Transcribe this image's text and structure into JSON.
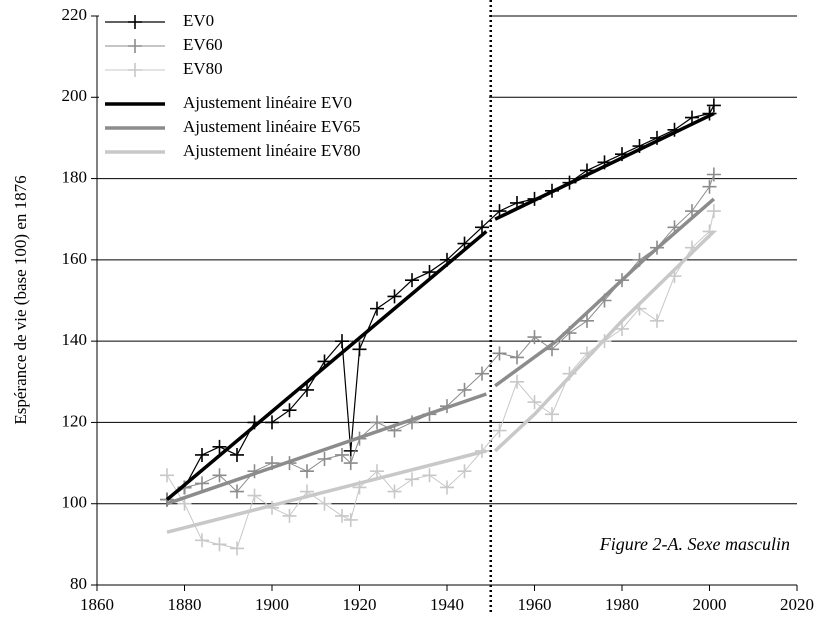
{
  "chart_data": {
    "type": "line",
    "y_label": "Espérance de vie (base 100) en 1876",
    "annotation": "Figure 2-A. Sexe masculin",
    "x": [
      1876,
      1880,
      1884,
      1888,
      1892,
      1896,
      1900,
      1904,
      1908,
      1912,
      1916,
      1918,
      1920,
      1924,
      1928,
      1932,
      1936,
      1940,
      1944,
      1948,
      1952,
      1956,
      1960,
      1964,
      1968,
      1972,
      1976,
      1980,
      1984,
      1988,
      1992,
      1996,
      2000,
      2001
    ],
    "series": [
      {
        "name": "EV0",
        "color": "#000000",
        "line_width": 1.2,
        "markers": true,
        "values": [
          101,
          104,
          112,
          114,
          112,
          120,
          120,
          123,
          128,
          135,
          140,
          113,
          138,
          148,
          151,
          155,
          157,
          160,
          164,
          168,
          172,
          174,
          175,
          177,
          179,
          182,
          184,
          186,
          188,
          190,
          192,
          195,
          196,
          198
        ]
      },
      {
        "name": "EV60",
        "color": "#8c8c8c",
        "line_width": 1,
        "markers": true,
        "values": [
          101,
          104,
          105,
          107,
          103,
          108,
          110,
          110,
          108,
          111,
          112,
          110,
          116,
          120,
          118,
          120,
          122,
          124,
          128,
          132,
          137,
          136,
          141,
          138,
          142,
          145,
          150,
          155,
          160,
          163,
          168,
          172,
          178,
          181
        ]
      },
      {
        "name": "EV80",
        "color": "#c8c8c8",
        "line_width": 1,
        "markers": true,
        "values": [
          107,
          100,
          91,
          90,
          89,
          102,
          99,
          97,
          103,
          100,
          97,
          96,
          104,
          108,
          103,
          106,
          107,
          104,
          108,
          113,
          118,
          130,
          125,
          122,
          132,
          137,
          140,
          143,
          148,
          145,
          156,
          163,
          167,
          172
        ]
      },
      {
        "name": "Ajustement linéaire EV0",
        "color": "#000000",
        "line_width": 3.5,
        "markers": false,
        "x": [
          1876,
          1949,
          1950,
          1951,
          2001
        ],
        "values": [
          101,
          167,
          null,
          170,
          196
        ]
      },
      {
        "name": "Ajustement linéaire EV65",
        "color": "#8c8c8c",
        "line_width": 3.5,
        "markers": false,
        "x": [
          1876,
          1949,
          1950,
          1951,
          1965,
          1985,
          2001
        ],
        "values": [
          100,
          127,
          null,
          129,
          140,
          160,
          175
        ]
      },
      {
        "name": "Ajustement linéaire EV80",
        "color": "#c8c8c8",
        "line_width": 3.5,
        "markers": false,
        "x": [
          1876,
          1949,
          1950,
          1951,
          1960,
          1980,
          2001
        ],
        "values": [
          93,
          113,
          null,
          113,
          122,
          145,
          167
        ]
      }
    ],
    "vline_x": 1950,
    "xlim": [
      1860,
      2020
    ],
    "xticks": [
      1860,
      1880,
      1900,
      1920,
      1940,
      1960,
      1980,
      2000,
      2020
    ],
    "ylim": [
      80,
      220
    ],
    "yticks": [
      80,
      100,
      120,
      140,
      160,
      180,
      200,
      220
    ],
    "grid": true,
    "legend": "upper left"
  }
}
